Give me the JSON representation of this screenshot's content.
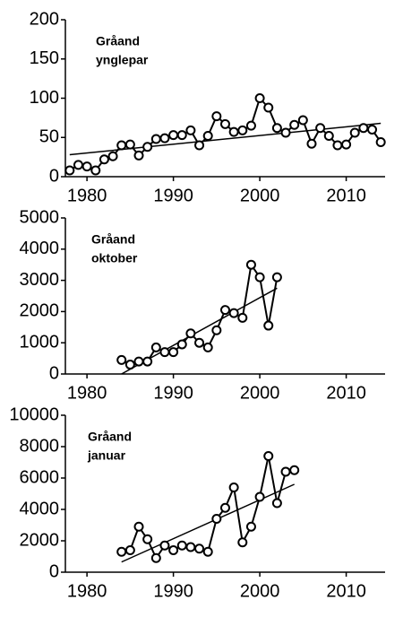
{
  "chart_data": [
    {
      "type": "line",
      "annotation": [
        "Gråand",
        "ynglepar"
      ],
      "x": [
        1978,
        1979,
        1980,
        1981,
        1982,
        1983,
        1984,
        1985,
        1986,
        1987,
        1988,
        1989,
        1990,
        1991,
        1992,
        1993,
        1994,
        1995,
        1996,
        1997,
        1998,
        1999,
        2000,
        2001,
        2002,
        2003,
        2004,
        2005,
        2006,
        2007,
        2008,
        2009,
        2010,
        2011,
        2012,
        2013,
        2014
      ],
      "series": [
        {
          "color": "#000000",
          "values": [
            8,
            15,
            13,
            8,
            22,
            26,
            40,
            41,
            27,
            38,
            48,
            49,
            53,
            53,
            59,
            40,
            52,
            77,
            67,
            57,
            59,
            65,
            100,
            88,
            62,
            56,
            66,
            72,
            42,
            62,
            52,
            40,
            41,
            56,
            62,
            60,
            44
          ]
        }
      ],
      "trendline": {
        "x": [
          1978,
          2014
        ],
        "values": [
          28,
          68
        ]
      },
      "xlim": [
        1977.5,
        2014.5
      ],
      "xticks": [
        1980,
        1990,
        2000,
        2010
      ],
      "ylim": [
        0,
        200
      ],
      "yticks": [
        0,
        50,
        100,
        150,
        200
      ]
    },
    {
      "type": "line",
      "annotation": [
        "Gråand",
        "oktober"
      ],
      "x": [
        1984,
        1985,
        1986,
        1987,
        1988,
        1989,
        1990,
        1991,
        1992,
        1993,
        1994,
        1995,
        1996,
        1997,
        1998,
        1999,
        2000,
        2001,
        2002
      ],
      "series": [
        {
          "color": "#000000",
          "values": [
            450,
            300,
            400,
            400,
            850,
            700,
            700,
            950,
            1300,
            1000,
            850,
            1400,
            2050,
            1950,
            1800,
            3500,
            3100,
            1550,
            3100
          ]
        }
      ],
      "trendline": {
        "x": [
          1984,
          2002
        ],
        "values": [
          0,
          2750
        ]
      },
      "xlim": [
        1977.5,
        2014.5
      ],
      "xticks": [
        1980,
        1990,
        2000,
        2010
      ],
      "ylim": [
        0,
        5000
      ],
      "yticks": [
        0,
        1000,
        2000,
        3000,
        4000,
        5000
      ]
    },
    {
      "type": "line",
      "annotation": [
        "Gråand",
        "januar"
      ],
      "x": [
        1984,
        1985,
        1986,
        1987,
        1988,
        1989,
        1990,
        1991,
        1992,
        1993,
        1994,
        1995,
        1996,
        1997,
        1998,
        1999,
        2000,
        2001,
        2002,
        2003,
        2004
      ],
      "series": [
        {
          "color": "#000000",
          "values": [
            1300,
            1400,
            2900,
            2100,
            900,
            1700,
            1400,
            1700,
            1600,
            1500,
            1300,
            3400,
            4100,
            5400,
            1900,
            2900,
            4800,
            7400,
            4400,
            6400,
            6500
          ]
        }
      ],
      "trendline": {
        "x": [
          1984,
          2004
        ],
        "values": [
          650,
          5600
        ]
      },
      "xlim": [
        1977.5,
        2014.5
      ],
      "xticks": [
        1980,
        1990,
        2000,
        2010
      ],
      "ylim": [
        0,
        10000
      ],
      "yticks": [
        0,
        2000,
        4000,
        6000,
        8000,
        10000
      ]
    }
  ]
}
